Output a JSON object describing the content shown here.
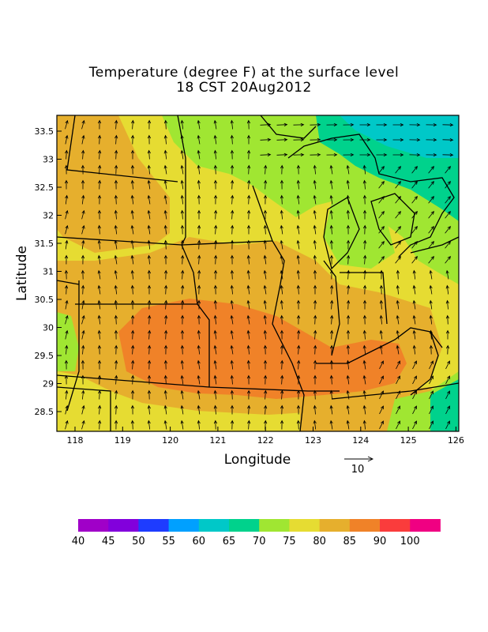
{
  "title_line1": "Temperature (degree F) at the surface level",
  "title_line2": "18 CST 20Aug2012",
  "xlabel": "Longitude",
  "ylabel": "Latitude",
  "x_ticks": [
    "118",
    "119",
    "120",
    "121",
    "122",
    "123",
    "124",
    "125",
    "126"
  ],
  "y_ticks": [
    "28.5",
    "29",
    "29.5",
    "30",
    "30.5",
    "31",
    "31.5",
    "32",
    "32.5",
    "33",
    "33.5"
  ],
  "vector_reference": "10",
  "colorbar": {
    "labels": [
      "40",
      "45",
      "50",
      "55",
      "60",
      "65",
      "70",
      "75",
      "80",
      "85",
      "90",
      "100"
    ],
    "colors": [
      "#a000c8",
      "#8200dc",
      "#1e3cff",
      "#00a0ff",
      "#00c8c8",
      "#00d28c",
      "#a0e632",
      "#e6dc32",
      "#e6af2d",
      "#f08228",
      "#fa3c3c",
      "#f00082"
    ]
  },
  "zone_colors": {
    "c70": "#00d28c",
    "c75": "#a0e632",
    "c80": "#e6dc32",
    "c85": "#e6af2d",
    "c90": "#f08228",
    "c65": "#00c8c8"
  }
}
